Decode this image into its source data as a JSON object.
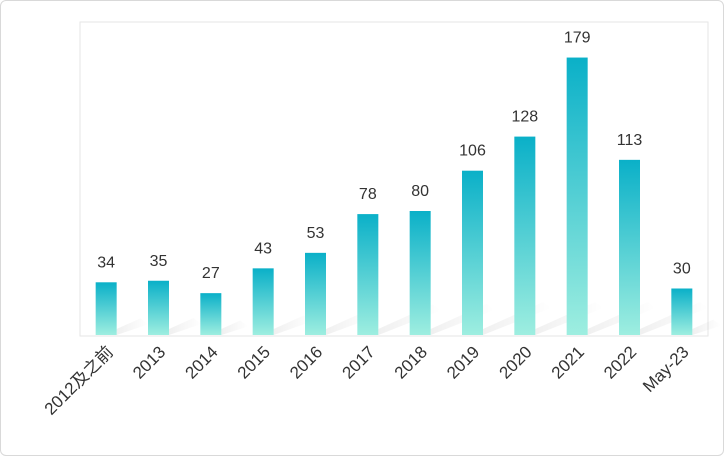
{
  "chart_data": {
    "type": "bar",
    "categories": [
      "2012及之前",
      "2013",
      "2014",
      "2015",
      "2016",
      "2017",
      "2018",
      "2019",
      "2020",
      "2021",
      "2022",
      "May-23"
    ],
    "values": [
      34,
      35,
      27,
      43,
      53,
      78,
      80,
      106,
      128,
      179,
      113,
      30
    ],
    "title": "",
    "xlabel": "",
    "ylabel": "",
    "ylim": [
      0,
      200
    ],
    "grid": false,
    "legend": "none",
    "data_labels": true,
    "bar_color_top": "#0ab0c8",
    "bar_color_bottom": "#9eeee0"
  }
}
